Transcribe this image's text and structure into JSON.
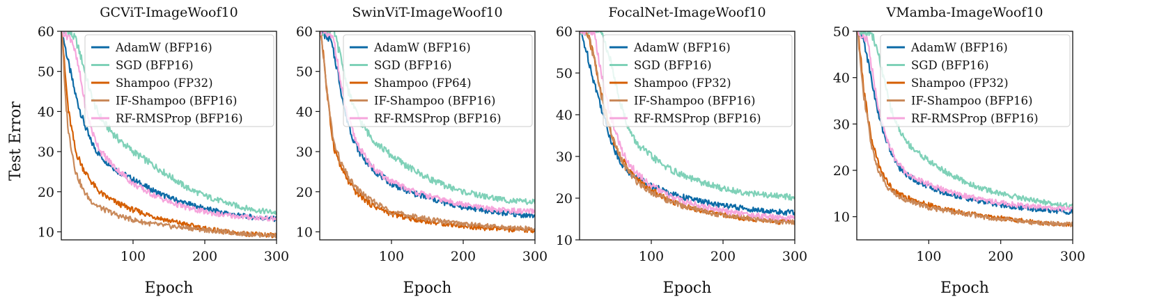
{
  "figure": {
    "ylabel": "Test Error",
    "xlabel": "Epoch"
  },
  "colors": {
    "AdamW": "#0b6aa6",
    "SGD": "#7fd1b8",
    "Shampoo": "#d55e00",
    "IF-Shampoo": "#c9895a",
    "RF-RMSProp": "#f6a5dc"
  },
  "chart_data": [
    {
      "type": "line",
      "title": "GCViT-ImageWoof10",
      "xlabel": "Epoch",
      "ylabel": "Test Error",
      "xlim": [
        0,
        300
      ],
      "ylim": [
        8,
        60
      ],
      "xticks": [
        100,
        200,
        300
      ],
      "yticks": [
        10,
        20,
        30,
        40,
        50,
        60
      ],
      "legend": "top-right",
      "series": [
        {
          "name": "AdamW (BFP16)",
          "key": "AdamW",
          "x": [
            1,
            10,
            20,
            30,
            40,
            50,
            60,
            70,
            80,
            100,
            125,
            150,
            175,
            200,
            225,
            250,
            275,
            300
          ],
          "values": [
            60,
            52,
            44,
            38,
            33,
            30,
            28,
            26.5,
            25,
            23,
            20.5,
            18.5,
            17,
            15.8,
            14.8,
            14,
            13.5,
            13.2
          ]
        },
        {
          "name": "SGD (BFP16)",
          "key": "SGD",
          "x": [
            1,
            10,
            20,
            30,
            40,
            50,
            60,
            70,
            80,
            100,
            125,
            150,
            175,
            200,
            225,
            250,
            275,
            300
          ],
          "values": [
            60,
            60,
            58,
            52,
            45,
            40,
            37,
            35,
            33,
            30,
            27,
            24,
            21,
            19,
            17.5,
            16.2,
            15.3,
            14.8
          ]
        },
        {
          "name": "Shampoo (FP32)",
          "key": "Shampoo",
          "x": [
            1,
            5,
            10,
            20,
            30,
            40,
            50,
            60,
            70,
            80,
            100,
            125,
            150,
            175,
            200,
            225,
            250,
            275,
            300
          ],
          "values": [
            60,
            50,
            40,
            30,
            26,
            23,
            20.5,
            19,
            18,
            17,
            15.5,
            14,
            12.8,
            11.8,
            10.8,
            10.1,
            9.6,
            9.3,
            9.1
          ]
        },
        {
          "name": "IF-Shampoo (BFP16)",
          "key": "IF-Shampoo",
          "x": [
            1,
            5,
            10,
            20,
            30,
            40,
            50,
            60,
            70,
            80,
            100,
            125,
            150,
            175,
            200,
            225,
            250,
            275,
            300
          ],
          "values": [
            60,
            45,
            35,
            25,
            20.5,
            18,
            16.5,
            15.5,
            14.8,
            14,
            13,
            12,
            11.4,
            11,
            10.5,
            10,
            9.6,
            9.3,
            9.1
          ]
        },
        {
          "name": "RF-RMSProp (BFP16)",
          "key": "RF-RMSProp",
          "x": [
            1,
            15,
            25,
            35,
            45,
            55,
            65,
            75,
            85,
            100,
            125,
            150,
            175,
            200,
            225,
            250,
            275,
            300
          ],
          "values": [
            60,
            58,
            50,
            40,
            34,
            30,
            28,
            26,
            24.5,
            22,
            19.5,
            17.5,
            16,
            15,
            14.2,
            13.8,
            13.5,
            13.2
          ]
        }
      ]
    },
    {
      "type": "line",
      "title": "SwinViT-ImageWoof10",
      "xlabel": "Epoch",
      "ylabel": "",
      "xlim": [
        0,
        300
      ],
      "ylim": [
        8,
        60
      ],
      "xticks": [
        100,
        200,
        300
      ],
      "yticks": [
        10,
        20,
        30,
        40,
        50,
        60
      ],
      "legend": "top-right",
      "series": [
        {
          "name": "AdamW (BFP16)",
          "key": "AdamW",
          "x": [
            1,
            15,
            25,
            35,
            45,
            55,
            65,
            75,
            85,
            100,
            125,
            150,
            175,
            200,
            225,
            250,
            275,
            300
          ],
          "values": [
            60,
            58,
            50,
            40,
            34,
            30,
            27.5,
            25.5,
            24,
            22,
            20,
            18.5,
            17.2,
            16.2,
            15.5,
            14.8,
            14.3,
            14
          ]
        },
        {
          "name": "SGD (BFP16)",
          "key": "SGD",
          "x": [
            1,
            20,
            30,
            40,
            50,
            60,
            70,
            80,
            100,
            125,
            150,
            175,
            200,
            225,
            250,
            275,
            300
          ],
          "values": [
            60,
            60,
            53,
            45,
            40,
            36.5,
            34,
            32,
            29,
            26,
            23.5,
            21.5,
            20,
            19,
            18.2,
            17.6,
            17.4
          ]
        },
        {
          "name": "Shampoo (FP64)",
          "key": "Shampoo",
          "x": [
            1,
            5,
            10,
            15,
            20,
            30,
            40,
            50,
            60,
            70,
            80,
            100,
            125,
            150,
            175,
            200,
            225,
            250,
            275,
            300
          ],
          "values": [
            60,
            55,
            45,
            37,
            31,
            26,
            22.5,
            20,
            18.5,
            17,
            16,
            14.5,
            13.4,
            12.6,
            12,
            11.5,
            11,
            10.7,
            10.5,
            10.3
          ]
        },
        {
          "name": "IF-Shampoo (BFP16)",
          "key": "IF-Shampoo",
          "x": [
            1,
            5,
            10,
            15,
            20,
            30,
            40,
            50,
            60,
            70,
            80,
            100,
            125,
            150,
            175,
            200,
            225,
            250,
            275,
            300
          ],
          "values": [
            60,
            54,
            45,
            38,
            32,
            27,
            23.5,
            21,
            19.5,
            18,
            17,
            15,
            14,
            13.2,
            12.5,
            12,
            11.6,
            11.2,
            10.9,
            10.7
          ]
        },
        {
          "name": "RF-RMSProp (BFP16)",
          "key": "RF-RMSProp",
          "x": [
            1,
            20,
            30,
            40,
            50,
            60,
            70,
            80,
            100,
            125,
            150,
            175,
            200,
            225,
            250,
            275,
            300
          ],
          "values": [
            60,
            58,
            46,
            38,
            33,
            29.5,
            27,
            25,
            22.5,
            20.5,
            19,
            17.8,
            16.8,
            16,
            15.5,
            15.2,
            15
          ]
        }
      ]
    },
    {
      "type": "line",
      "title": "FocalNet-ImageWoof10",
      "xlabel": "Epoch",
      "ylabel": "",
      "xlim": [
        0,
        300
      ],
      "ylim": [
        10,
        60
      ],
      "xticks": [
        100,
        200,
        300
      ],
      "yticks": [
        10,
        20,
        30,
        40,
        50,
        60
      ],
      "legend": "top-right",
      "series": [
        {
          "name": "AdamW (BFP16)",
          "key": "AdamW",
          "x": [
            1,
            5,
            10,
            20,
            30,
            40,
            50,
            60,
            70,
            80,
            100,
            125,
            150,
            175,
            200,
            225,
            250,
            275,
            300
          ],
          "values": [
            60,
            58,
            55,
            48,
            42,
            36,
            31,
            28,
            26,
            25,
            23,
            21.2,
            20,
            19,
            18.2,
            17.6,
            17,
            16.7,
            16.5
          ]
        },
        {
          "name": "SGD (BFP16)",
          "key": "SGD",
          "x": [
            1,
            30,
            40,
            50,
            60,
            70,
            80,
            100,
            125,
            150,
            175,
            200,
            225,
            250,
            275,
            300
          ],
          "values": [
            60,
            60,
            55,
            48,
            41,
            36,
            33,
            30,
            27,
            25,
            23.5,
            22.3,
            21.5,
            20.9,
            20.5,
            20.2
          ]
        },
        {
          "name": "Shampoo (FP32)",
          "key": "Shampoo",
          "x": [
            1,
            10,
            20,
            30,
            40,
            50,
            60,
            70,
            80,
            100,
            125,
            150,
            175,
            200,
            225,
            250,
            275,
            300
          ],
          "values": [
            60,
            60,
            54,
            45,
            38,
            32.5,
            29,
            26.5,
            24.5,
            22,
            19.5,
            18,
            16.8,
            16,
            15.3,
            14.8,
            14.4,
            14.2
          ]
        },
        {
          "name": "IF-Shampoo (BFP16)",
          "key": "IF-Shampoo",
          "x": [
            1,
            10,
            20,
            30,
            40,
            50,
            60,
            70,
            80,
            100,
            125,
            150,
            175,
            200,
            225,
            250,
            275,
            300
          ],
          "values": [
            60,
            60,
            54,
            45,
            38,
            32.5,
            28.5,
            26,
            24,
            21.5,
            19.3,
            17.8,
            16.8,
            16,
            15.4,
            14.9,
            14.5,
            14.2
          ]
        },
        {
          "name": "RF-RMSProp (BFP16)",
          "key": "RF-RMSProp",
          "x": [
            1,
            20,
            30,
            40,
            50,
            60,
            70,
            80,
            100,
            125,
            150,
            175,
            200,
            225,
            250,
            275,
            300
          ],
          "values": [
            60,
            60,
            50,
            42,
            36,
            31,
            28,
            26,
            23,
            20.5,
            19,
            18,
            17,
            16.3,
            15.8,
            15.4,
            15.2
          ]
        }
      ]
    },
    {
      "type": "line",
      "title": "VMamba-ImageWoof10",
      "xlabel": "Epoch",
      "ylabel": "",
      "xlim": [
        0,
        300
      ],
      "ylim": [
        5,
        50
      ],
      "xticks": [
        100,
        200,
        300
      ],
      "yticks": [
        10,
        20,
        30,
        40,
        50
      ],
      "legend": "top-right",
      "series": [
        {
          "name": "AdamW (BFP16)",
          "key": "AdamW",
          "x": [
            1,
            10,
            20,
            30,
            40,
            50,
            60,
            70,
            80,
            100,
            125,
            150,
            175,
            200,
            225,
            250,
            275,
            300
          ],
          "values": [
            50,
            48,
            40,
            32,
            27,
            23,
            20.5,
            19,
            18,
            16.5,
            15,
            14,
            13.2,
            12.5,
            12,
            11.6,
            11.3,
            11
          ]
        },
        {
          "name": "SGD (BFP16)",
          "key": "SGD",
          "x": [
            1,
            20,
            30,
            40,
            50,
            60,
            70,
            80,
            100,
            125,
            150,
            175,
            200,
            225,
            250,
            275,
            300
          ],
          "values": [
            50,
            50,
            45,
            38,
            32,
            28.5,
            26,
            24.5,
            22,
            19.5,
            17.5,
            16,
            15,
            14.2,
            13.4,
            12.8,
            12.3
          ]
        },
        {
          "name": "Shampoo (FP32)",
          "key": "Shampoo",
          "x": [
            1,
            5,
            10,
            20,
            30,
            40,
            50,
            60,
            70,
            80,
            100,
            125,
            150,
            175,
            200,
            225,
            250,
            275,
            300
          ],
          "values": [
            50,
            45,
            37,
            27,
            21.5,
            18,
            16,
            14.8,
            14,
            13.5,
            12.5,
            11.5,
            10.8,
            10.2,
            9.7,
            9.2,
            8.8,
            8.5,
            8.3
          ]
        },
        {
          "name": "IF-Shampoo (BFP16)",
          "key": "IF-Shampoo",
          "x": [
            1,
            5,
            10,
            20,
            30,
            40,
            50,
            60,
            70,
            80,
            100,
            125,
            150,
            175,
            200,
            225,
            250,
            275,
            300
          ],
          "values": [
            50,
            44,
            36,
            25.5,
            20,
            17,
            15.3,
            14.2,
            13.5,
            13,
            12,
            11.2,
            10.6,
            10,
            9.5,
            9.1,
            8.7,
            8.5,
            8.3
          ]
        },
        {
          "name": "RF-RMSProp (BFP16)",
          "key": "RF-RMSProp",
          "x": [
            1,
            15,
            25,
            35,
            45,
            55,
            65,
            75,
            85,
            100,
            125,
            150,
            175,
            200,
            225,
            250,
            275,
            300
          ],
          "values": [
            50,
            48,
            38,
            30,
            25.5,
            22,
            20,
            18.8,
            18,
            17,
            15.5,
            14.5,
            13.7,
            13,
            12.5,
            12.1,
            11.8,
            11.6
          ]
        }
      ]
    }
  ]
}
